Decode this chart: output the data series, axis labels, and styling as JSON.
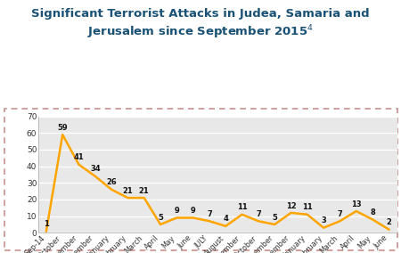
{
  "title_line1": "Significant Terrorist Attacks in Judea, Samaria and",
  "title_line2": "Jerusalem since September 2015",
  "title_superscript": "4",
  "categories": [
    "Sep-14",
    "October",
    "November",
    "December",
    "January",
    "February",
    "March",
    "April",
    "May",
    "June",
    "JULY",
    "August",
    "September",
    "October",
    "November",
    "December",
    "January",
    "February",
    "March",
    "April",
    "May",
    "June"
  ],
  "values": [
    1,
    59,
    41,
    34,
    26,
    21,
    21,
    5,
    9,
    9,
    7,
    4,
    11,
    7,
    5,
    12,
    11,
    3,
    7,
    13,
    8,
    2
  ],
  "line_color": "#FFA500",
  "line_width": 1.8,
  "ylim": [
    0,
    70
  ],
  "yticks": [
    0,
    10,
    20,
    30,
    40,
    50,
    60,
    70
  ],
  "fig_bg_color": "#ffffff",
  "plot_bg_color": "#e8e8e8",
  "outer_border_color": "#c89090",
  "title_color": "#1a5276",
  "grid_color": "#ffffff",
  "title_fontsize": 9.5,
  "label_fontsize": 5.8,
  "value_fontsize": 6.0,
  "ytick_fontsize": 6.5
}
